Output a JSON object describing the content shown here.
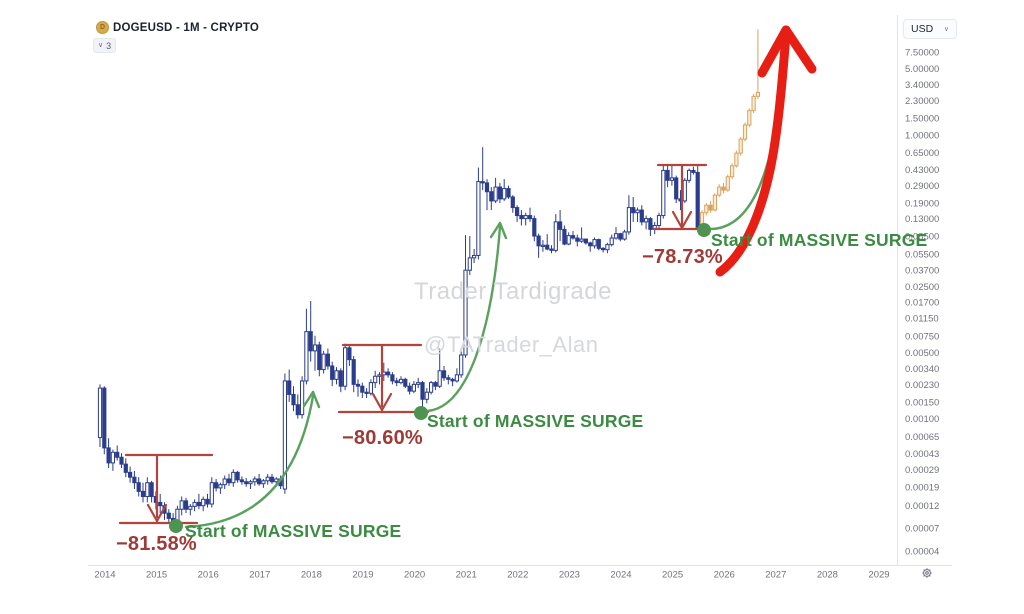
{
  "header": {
    "symbol_title": "DOGEUSD - 1M - CRYPTO",
    "indicators_chip": {
      "chevron": "∨",
      "count": "3"
    },
    "currency_button": {
      "label": "USD",
      "chevron": "∨"
    }
  },
  "watermarks": {
    "line1": "Trader Tardigrade",
    "line2": "@TATrader_Alan"
  },
  "drawings": {
    "surge1_label": "Start of MASSIVE SURGE",
    "surge1_drop": "−81.58%",
    "surge2_label": "Start of MASSIVE SURGE",
    "surge2_drop": "−80.60%",
    "surge3_label": "Start of MASSIVE SURGE",
    "surge3_drop": "−78.73%"
  },
  "colors": {
    "candle_blue": "#2b3d8c",
    "candle_up_fill": "#ffffff",
    "projection": "#d9a35f",
    "projection_fill": "#f8ecd4",
    "measure_red": "#b2433d",
    "percent_text": "#9d3b36",
    "surge_green": "#3c8b43",
    "arc_green": "#5ba15e",
    "dot_green": "#4f9350",
    "big_arrow_red": "#e61e14",
    "axis_text": "#70737c",
    "axis_line": "#e1e3ea",
    "watermark": "#d4d6da"
  },
  "chart_data": {
    "type": "candlestick",
    "symbol": "DOGEUSD",
    "interval": "1M",
    "market": "CRYPTO",
    "currency": "USD",
    "scale": "log",
    "start_month": "2013-12",
    "price_axis_labels": [
      "7.50000",
      "5.00000",
      "3.40000",
      "2.30000",
      "1.50000",
      "1.00000",
      "0.65000",
      "0.43000",
      "0.29000",
      "0.19000",
      "0.13000",
      "0.08500",
      "0.05500",
      "0.03700",
      "0.02500",
      "0.01700",
      "0.01150",
      "0.00750",
      "0.00500",
      "0.00340",
      "0.00230",
      "0.00150",
      "0.00100",
      "0.00065",
      "0.00043",
      "0.00029",
      "0.00019",
      "0.00012",
      "0.00007",
      "0.00004"
    ],
    "time_axis_labels": [
      "2014",
      "2015",
      "2016",
      "2017",
      "2018",
      "2019",
      "2020",
      "2021",
      "2022",
      "2023",
      "2024",
      "2025",
      "2026",
      "2027",
      "2028",
      "2029"
    ],
    "measurements": [
      {
        "from_price": 0.00041,
        "to_price": 7.55e-05,
        "change_label": "−81.58%"
      },
      {
        "from_price": 0.0062,
        "to_price": 0.00116,
        "change_label": "−80.60%"
      },
      {
        "from_price": 0.472,
        "to_price": 0.0963,
        "change_label": "−78.73%"
      }
    ],
    "surge_points": [
      {
        "month": "2015-06",
        "price": 7.55e-05,
        "label": "Start of MASSIVE SURGE"
      },
      {
        "month": "2020-03",
        "price": 0.00115,
        "label": "Start of MASSIVE SURGE"
      },
      {
        "month": "2025-07",
        "price": 0.0975,
        "label": "Start of MASSIVE SURGE"
      }
    ],
    "candles": [
      [
        0.00063,
        0.0023,
        0.0005,
        0.0021
      ],
      [
        0.0021,
        0.0022,
        0.00042,
        0.00049
      ],
      [
        0.00049,
        0.00062,
        0.0003,
        0.00034
      ],
      [
        0.00034,
        0.00047,
        0.00028,
        0.00044
      ],
      [
        0.00044,
        0.00052,
        0.00036,
        0.00039
      ],
      [
        0.00039,
        0.00043,
        0.0003,
        0.00033
      ],
      [
        0.00033,
        0.00038,
        0.00024,
        0.00027
      ],
      [
        0.00027,
        0.00031,
        0.00021,
        0.00024
      ],
      [
        0.00024,
        0.00028,
        0.00018,
        0.00021
      ],
      [
        0.00021,
        0.00024,
        0.00015,
        0.00017
      ],
      [
        0.00017,
        0.00021,
        0.00013,
        0.00015
      ],
      [
        0.00015,
        0.00024,
        0.00013,
        0.00021
      ],
      [
        0.00021,
        0.00022,
        0.00013,
        0.00015
      ],
      [
        0.00015,
        0.00017,
        0.00011,
        0.00013
      ],
      [
        0.00013,
        0.00016,
        0.0001,
        0.00012
      ],
      [
        0.00012,
        0.00013,
        8.5e-05,
        0.0001
      ],
      [
        0.0001,
        0.00011,
        8e-05,
        8.8e-05
      ],
      [
        8.8e-05,
        0.0001,
        7.2e-05,
        7.8e-05
      ],
      [
        7.8e-05,
        0.00012,
        7e-05,
        0.00011
      ],
      [
        0.00011,
        0.00015,
        9.5e-05,
        0.000135
      ],
      [
        0.000135,
        0.000145,
        0.0001,
        0.00011
      ],
      [
        0.00011,
        0.000125,
        9.5e-05,
        0.000118
      ],
      [
        0.000118,
        0.00014,
        0.000105,
        0.00013
      ],
      [
        0.00013,
        0.00016,
        0.00011,
        0.00012
      ],
      [
        0.00012,
        0.00015,
        0.000105,
        0.00014
      ],
      [
        0.00014,
        0.00016,
        0.000115,
        0.000125
      ],
      [
        0.000125,
        0.00024,
        0.000115,
        0.00021
      ],
      [
        0.00021,
        0.00023,
        0.00017,
        0.000185
      ],
      [
        0.000185,
        0.00021,
        0.00016,
        0.0002
      ],
      [
        0.0002,
        0.00025,
        0.00018,
        0.00023
      ],
      [
        0.00023,
        0.00026,
        0.000195,
        0.00021
      ],
      [
        0.00021,
        0.00029,
        0.00019,
        0.00027
      ],
      [
        0.00027,
        0.00028,
        0.00021,
        0.000225
      ],
      [
        0.000225,
        0.000245,
        0.0002,
        0.000215
      ],
      [
        0.000215,
        0.000235,
        0.00019,
        0.000205
      ],
      [
        0.000205,
        0.000225,
        0.00018,
        0.000215
      ],
      [
        0.000215,
        0.000245,
        0.000195,
        0.00023
      ],
      [
        0.00023,
        0.00026,
        0.000195,
        0.000205
      ],
      [
        0.000205,
        0.00023,
        0.000185,
        0.00022
      ],
      [
        0.00022,
        0.00026,
        0.0002,
        0.00024
      ],
      [
        0.00024,
        0.00026,
        0.000205,
        0.000215
      ],
      [
        0.000215,
        0.00024,
        0.00019,
        0.00023
      ],
      [
        0.00023,
        0.00025,
        0.00018,
        0.000195
      ],
      [
        0.00018,
        0.003,
        0.00016,
        0.0025
      ],
      [
        0.0025,
        0.0033,
        0.0015,
        0.0018
      ],
      [
        0.0018,
        0.0022,
        0.0012,
        0.0014
      ],
      [
        0.0014,
        0.0018,
        0.001,
        0.0011
      ],
      [
        0.0011,
        0.0028,
        0.001,
        0.0025
      ],
      [
        0.0025,
        0.0145,
        0.0023,
        0.0083
      ],
      [
        0.0083,
        0.0175,
        0.004,
        0.0052
      ],
      [
        0.0052,
        0.0075,
        0.0032,
        0.006
      ],
      [
        0.006,
        0.0065,
        0.0028,
        0.0033
      ],
      [
        0.0033,
        0.0052,
        0.003,
        0.0048
      ],
      [
        0.0048,
        0.0055,
        0.0033,
        0.0036
      ],
      [
        0.0036,
        0.004,
        0.0022,
        0.0026
      ],
      [
        0.0026,
        0.0035,
        0.0023,
        0.0032
      ],
      [
        0.0032,
        0.0034,
        0.0019,
        0.0022
      ],
      [
        0.0022,
        0.0062,
        0.002,
        0.0056
      ],
      [
        0.0056,
        0.006,
        0.0036,
        0.0042
      ],
      [
        0.0042,
        0.0046,
        0.0019,
        0.0023
      ],
      [
        0.0023,
        0.0026,
        0.0017,
        0.0022
      ],
      [
        0.0022,
        0.0024,
        0.00165,
        0.0019
      ],
      [
        0.0019,
        0.0021,
        0.00165,
        0.00185
      ],
      [
        0.00185,
        0.0026,
        0.00175,
        0.0024
      ],
      [
        0.0024,
        0.0032,
        0.0021,
        0.0028
      ],
      [
        0.0028,
        0.0031,
        0.0023,
        0.0029
      ],
      [
        0.0029,
        0.0039,
        0.0025,
        0.0031
      ],
      [
        0.0031,
        0.0034,
        0.0027,
        0.0029
      ],
      [
        0.0029,
        0.0031,
        0.0023,
        0.0025
      ],
      [
        0.0025,
        0.0027,
        0.0022,
        0.0024
      ],
      [
        0.0024,
        0.0028,
        0.0023,
        0.0026
      ],
      [
        0.0026,
        0.0027,
        0.0021,
        0.0022
      ],
      [
        0.0022,
        0.0024,
        0.0018,
        0.00195
      ],
      [
        0.00195,
        0.0025,
        0.00185,
        0.0023
      ],
      [
        0.0023,
        0.0027,
        0.0021,
        0.0024
      ],
      [
        0.0024,
        0.0025,
        0.0011,
        0.0016
      ],
      [
        0.0016,
        0.0021,
        0.00145,
        0.0019
      ],
      [
        0.0019,
        0.0025,
        0.0018,
        0.0024
      ],
      [
        0.0024,
        0.0025,
        0.002,
        0.0022
      ],
      [
        0.0022,
        0.0055,
        0.0021,
        0.0032
      ],
      [
        0.0032,
        0.0036,
        0.0025,
        0.0027
      ],
      [
        0.0027,
        0.0029,
        0.0023,
        0.0026
      ],
      [
        0.0026,
        0.0027,
        0.0022,
        0.0025
      ],
      [
        0.0025,
        0.0034,
        0.0024,
        0.0029
      ],
      [
        0.0029,
        0.0056,
        0.0027,
        0.0047
      ],
      [
        0.0047,
        0.087,
        0.0044,
        0.037
      ],
      [
        0.037,
        0.085,
        0.033,
        0.05
      ],
      [
        0.05,
        0.062,
        0.044,
        0.053
      ],
      [
        0.053,
        0.45,
        0.048,
        0.32
      ],
      [
        0.32,
        0.74,
        0.26,
        0.31
      ],
      [
        0.31,
        0.34,
        0.16,
        0.25
      ],
      [
        0.25,
        0.28,
        0.16,
        0.2
      ],
      [
        0.2,
        0.35,
        0.19,
        0.28
      ],
      [
        0.28,
        0.31,
        0.19,
        0.21
      ],
      [
        0.21,
        0.34,
        0.2,
        0.27
      ],
      [
        0.27,
        0.29,
        0.21,
        0.22
      ],
      [
        0.22,
        0.23,
        0.15,
        0.17
      ],
      [
        0.17,
        0.18,
        0.12,
        0.14
      ],
      [
        0.14,
        0.16,
        0.11,
        0.13
      ],
      [
        0.13,
        0.15,
        0.11,
        0.14
      ],
      [
        0.14,
        0.17,
        0.12,
        0.13
      ],
      [
        0.13,
        0.14,
        0.075,
        0.085
      ],
      [
        0.085,
        0.09,
        0.05,
        0.067
      ],
      [
        0.067,
        0.077,
        0.058,
        0.068
      ],
      [
        0.068,
        0.089,
        0.06,
        0.062
      ],
      [
        0.062,
        0.068,
        0.056,
        0.06
      ],
      [
        0.06,
        0.145,
        0.057,
        0.12
      ],
      [
        0.12,
        0.16,
        0.075,
        0.1
      ],
      [
        0.1,
        0.11,
        0.068,
        0.07
      ],
      [
        0.07,
        0.093,
        0.068,
        0.086
      ],
      [
        0.086,
        0.096,
        0.078,
        0.081
      ],
      [
        0.081,
        0.088,
        0.066,
        0.075
      ],
      [
        0.075,
        0.105,
        0.072,
        0.079
      ],
      [
        0.079,
        0.08,
        0.069,
        0.072
      ],
      [
        0.072,
        0.074,
        0.058,
        0.067
      ],
      [
        0.067,
        0.082,
        0.063,
        0.078
      ],
      [
        0.078,
        0.08,
        0.06,
        0.063
      ],
      [
        0.063,
        0.065,
        0.057,
        0.061
      ],
      [
        0.061,
        0.072,
        0.056,
        0.069
      ],
      [
        0.069,
        0.088,
        0.066,
        0.081
      ],
      [
        0.081,
        0.106,
        0.078,
        0.09
      ],
      [
        0.09,
        0.092,
        0.075,
        0.079
      ],
      [
        0.079,
        0.099,
        0.076,
        0.094
      ],
      [
        0.094,
        0.23,
        0.088,
        0.17
      ],
      [
        0.17,
        0.22,
        0.12,
        0.15
      ],
      [
        0.15,
        0.17,
        0.12,
        0.16
      ],
      [
        0.16,
        0.18,
        0.11,
        0.12
      ],
      [
        0.12,
        0.14,
        0.1,
        0.13
      ],
      [
        0.13,
        0.135,
        0.085,
        0.1
      ],
      [
        0.1,
        0.12,
        0.089,
        0.11
      ],
      [
        0.11,
        0.15,
        0.1,
        0.14
      ],
      [
        0.14,
        0.48,
        0.13,
        0.42
      ],
      [
        0.42,
        0.49,
        0.28,
        0.33
      ],
      [
        0.33,
        0.48,
        0.29,
        0.35
      ],
      [
        0.35,
        0.37,
        0.19,
        0.21
      ],
      [
        0.21,
        0.26,
        0.16,
        0.2
      ],
      [
        0.2,
        0.35,
        0.19,
        0.33
      ],
      [
        0.33,
        0.44,
        0.31,
        0.42
      ],
      [
        0.42,
        0.46,
        0.38,
        0.4
      ],
      [
        0.4,
        0.47,
        0.095,
        0.105
      ]
    ],
    "projected_candles": [
      [
        0.105,
        0.16,
        0.1,
        0.15
      ],
      [
        0.15,
        0.19,
        0.14,
        0.18
      ],
      [
        0.18,
        0.2,
        0.15,
        0.16
      ],
      [
        0.16,
        0.24,
        0.155,
        0.23
      ],
      [
        0.23,
        0.3,
        0.22,
        0.28
      ],
      [
        0.28,
        0.31,
        0.24,
        0.26
      ],
      [
        0.26,
        0.38,
        0.25,
        0.36
      ],
      [
        0.36,
        0.5,
        0.34,
        0.47
      ],
      [
        0.47,
        0.68,
        0.45,
        0.64
      ],
      [
        0.64,
        0.95,
        0.6,
        0.9
      ],
      [
        0.9,
        1.35,
        0.85,
        1.27
      ],
      [
        1.27,
        1.9,
        1.2,
        1.8
      ],
      [
        1.8,
        2.7,
        1.7,
        2.55
      ],
      [
        2.55,
        13.0,
        2.4,
        2.8
      ]
    ]
  }
}
